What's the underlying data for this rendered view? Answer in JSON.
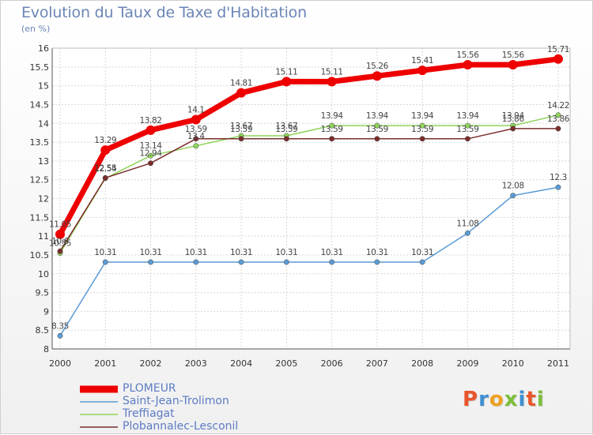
{
  "header": {
    "title": "Evolution du Taux de Taxe d'Habitation",
    "subtitle": "(en %)"
  },
  "logo": {
    "text": "Proxiti",
    "letters": [
      {
        "ch": "P",
        "color": "#e8552b"
      },
      {
        "ch": "r",
        "color": "#3f8fd2"
      },
      {
        "ch": "o",
        "color": "#f0a020"
      },
      {
        "ch": "x",
        "color": "#7bbf3a"
      },
      {
        "ch": "i",
        "color": "#3f8fd2"
      },
      {
        "ch": "t",
        "color": "#e8552b"
      },
      {
        "ch": "i",
        "color": "#7bbf3a"
      }
    ]
  },
  "chart_data": {
    "type": "line",
    "title": "Evolution du Taux de Taxe d'Habitation",
    "subtitle": "(en %)",
    "xlabel": "",
    "ylabel": "",
    "x": [
      "2000",
      "2001",
      "2002",
      "2003",
      "2004",
      "2005",
      "2006",
      "2007",
      "2008",
      "2009",
      "2010",
      "2011"
    ],
    "ylim": [
      8,
      16
    ],
    "yticks": [
      "8",
      "8.5",
      "9",
      "9.5",
      "10",
      "10.5",
      "11",
      "11.5",
      "12",
      "12.5",
      "13",
      "13.5",
      "14",
      "14.5",
      "15",
      "15.5",
      "16"
    ],
    "grid": true,
    "legend_position": "bottom-left",
    "series": [
      {
        "name": "Saint-Jean-Trolimon",
        "color": "#5b9bd5",
        "values": [
          8.35,
          10.31,
          10.31,
          10.31,
          10.31,
          10.31,
          10.31,
          10.31,
          10.31,
          11.08,
          12.08,
          12.3
        ],
        "labels": [
          "8.35",
          "10.31",
          "10.31",
          "10.31",
          "10.31",
          "10.31",
          "10.31",
          "10.31",
          "10.31",
          "11.08",
          "12.08",
          "12.3"
        ]
      },
      {
        "name": "Treffiagat",
        "color": "#8fd45a",
        "values": [
          10.55,
          12.54,
          13.14,
          13.4,
          13.67,
          13.67,
          13.94,
          13.94,
          13.94,
          13.94,
          13.94,
          14.22
        ],
        "labels": [
          "10.55",
          "12.54",
          "13.14",
          "13.4",
          "13.67",
          "13.67",
          "13.94",
          "13.94",
          "13.94",
          "13.94",
          "13.94",
          "14.22"
        ]
      },
      {
        "name": "Plobannalec-Lesconil",
        "color": "#7b2d2d",
        "values": [
          10.6,
          12.55,
          12.94,
          13.59,
          13.59,
          13.59,
          13.59,
          13.59,
          13.59,
          13.59,
          13.86,
          13.86
        ],
        "labels": [
          "10.6",
          "12.55",
          "12.94",
          "13.59",
          "13.59",
          "13.59",
          "13.59",
          "13.59",
          "13.59",
          "13.59",
          "13.86",
          "13.86"
        ]
      },
      {
        "name": "PLOMEUR",
        "color": "#ee0000",
        "values": [
          11.05,
          13.29,
          13.82,
          14.1,
          14.81,
          15.11,
          15.11,
          15.26,
          15.41,
          15.56,
          15.56,
          15.71
        ],
        "labels": [
          "11.05",
          "13.29",
          "13.82",
          "14.1",
          "14.81",
          "15.11",
          "15.11",
          "15.26",
          "15.41",
          "15.56",
          "15.56",
          "15.71"
        ]
      }
    ],
    "legend": [
      "PLOMEUR",
      "Saint-Jean-Trolimon",
      "Treffiagat",
      "Plobannalec-Lesconil"
    ]
  }
}
